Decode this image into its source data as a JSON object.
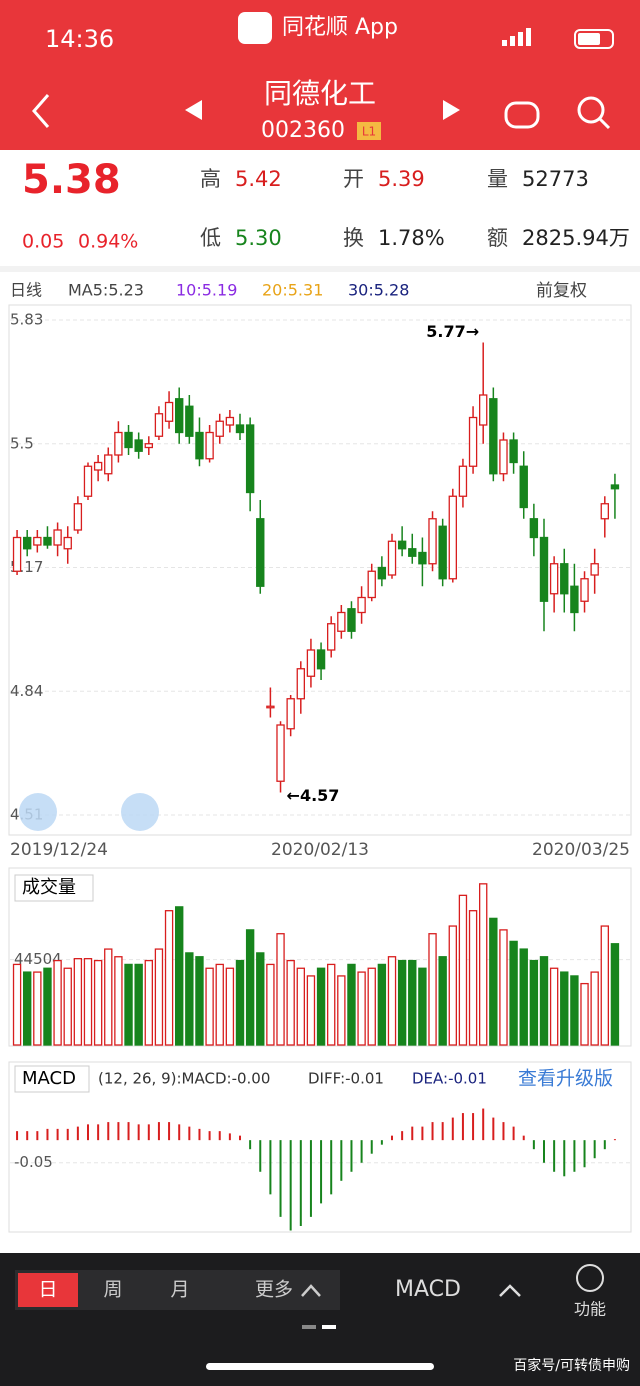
{
  "status": {
    "time": "14:36",
    "app": "同花顺 App"
  },
  "header": {
    "name": "同德化工",
    "code": "002360",
    "level": "L1"
  },
  "quote": {
    "price": "5.38",
    "change": "0.05",
    "pct": "0.94%",
    "items": [
      {
        "label": "高",
        "value": "5.42"
      },
      {
        "label": "开",
        "value": "5.39"
      },
      {
        "label": "量",
        "value": "52773"
      },
      {
        "label": "低",
        "value": "5.30"
      },
      {
        "label": "换",
        "value": "1.78%"
      },
      {
        "label": "额",
        "value": "2825.94万"
      }
    ]
  },
  "price": {
    "type": "candlestick",
    "period": "日线",
    "ma": [
      "MA5:5.23",
      "10:5.19",
      "20:5.31",
      "30:5.28"
    ],
    "adjust": "前复权",
    "ylim": [
      4.51,
      5.83
    ],
    "yticks": [
      5.83,
      5.5,
      {
        "value": 5.17,
        "label": "5.17"
      },
      4.84,
      4.51
    ],
    "dates": [
      "2019/12/24",
      "2020/02/13",
      "2020/03/25"
    ],
    "annotations": [
      "5.77→",
      "←4.57"
    ],
    "candles": [
      [
        5.16,
        5.27,
        5.15,
        5.25
      ],
      [
        5.25,
        5.27,
        5.2,
        5.22
      ],
      [
        5.23,
        5.27,
        5.21,
        5.25
      ],
      [
        5.25,
        5.28,
        5.22,
        5.23
      ],
      [
        5.23,
        5.29,
        5.2,
        5.27
      ],
      [
        5.22,
        5.28,
        5.18,
        5.25
      ],
      [
        5.27,
        5.36,
        5.26,
        5.34
      ],
      [
        5.36,
        5.45,
        5.35,
        5.44
      ],
      [
        5.43,
        5.47,
        5.4,
        5.45
      ],
      [
        5.42,
        5.49,
        5.4,
        5.47
      ],
      [
        5.47,
        5.56,
        5.45,
        5.53
      ],
      [
        5.53,
        5.55,
        5.47,
        5.49
      ],
      [
        5.51,
        5.53,
        5.46,
        5.48
      ],
      [
        5.49,
        5.52,
        5.47,
        5.5
      ],
      [
        5.52,
        5.6,
        5.51,
        5.58
      ],
      [
        5.56,
        5.64,
        5.54,
        5.61
      ],
      [
        5.62,
        5.65,
        5.5,
        5.53
      ],
      [
        5.6,
        5.63,
        5.5,
        5.52
      ],
      [
        5.53,
        5.57,
        5.44,
        5.46
      ],
      [
        5.46,
        5.55,
        5.45,
        5.53
      ],
      [
        5.52,
        5.58,
        5.5,
        5.56
      ],
      [
        5.55,
        5.59,
        5.53,
        5.57
      ],
      [
        5.55,
        5.58,
        5.51,
        5.53
      ],
      [
        5.55,
        5.57,
        5.32,
        5.37
      ],
      [
        5.3,
        5.35,
        5.1,
        5.12
      ],
      [
        4.8,
        4.85,
        4.77,
        4.8
      ],
      [
        4.6,
        4.76,
        4.57,
        4.75
      ],
      [
        4.74,
        4.83,
        4.72,
        4.82
      ],
      [
        4.82,
        4.92,
        4.78,
        4.9
      ],
      [
        4.88,
        4.98,
        4.85,
        4.95
      ],
      [
        4.95,
        4.97,
        4.87,
        4.9
      ],
      [
        4.95,
        5.04,
        4.93,
        5.02
      ],
      [
        5.0,
        5.07,
        4.98,
        5.05
      ],
      [
        5.06,
        5.08,
        4.98,
        5.0
      ],
      [
        5.05,
        5.12,
        5.02,
        5.09
      ],
      [
        5.09,
        5.18,
        5.08,
        5.16
      ],
      [
        5.17,
        5.2,
        5.12,
        5.14
      ],
      [
        5.15,
        5.26,
        5.14,
        5.24
      ],
      [
        5.24,
        5.28,
        5.2,
        5.22
      ],
      [
        5.22,
        5.26,
        5.18,
        5.2
      ],
      [
        5.21,
        5.25,
        5.12,
        5.18
      ],
      [
        5.18,
        5.32,
        5.16,
        5.3
      ],
      [
        5.28,
        5.3,
        5.12,
        5.14
      ],
      [
        5.14,
        5.38,
        5.13,
        5.36
      ],
      [
        5.36,
        5.46,
        5.33,
        5.44
      ],
      [
        5.44,
        5.6,
        5.42,
        5.57
      ],
      [
        5.55,
        5.77,
        5.5,
        5.63
      ],
      [
        5.62,
        5.65,
        5.4,
        5.42
      ],
      [
        5.42,
        5.53,
        5.4,
        5.51
      ],
      [
        5.51,
        5.53,
        5.42,
        5.45
      ],
      [
        5.44,
        5.48,
        5.3,
        5.33
      ],
      [
        5.3,
        5.34,
        5.2,
        5.25
      ],
      [
        5.25,
        5.3,
        5.0,
        5.08
      ],
      [
        5.1,
        5.2,
        5.05,
        5.18
      ],
      [
        5.18,
        5.22,
        5.05,
        5.1
      ],
      [
        5.12,
        5.18,
        5.0,
        5.05
      ],
      [
        5.08,
        5.16,
        5.05,
        5.14
      ],
      [
        5.15,
        5.22,
        5.1,
        5.18
      ],
      [
        5.3,
        5.36,
        5.25,
        5.34
      ],
      [
        5.39,
        5.42,
        5.3,
        5.38
      ]
    ]
  },
  "volume": {
    "type": "bar",
    "title": "成交量",
    "ylim": [
      0,
      86000
    ],
    "yticks": [
      44504
    ],
    "values": [
      42000,
      38000,
      38000,
      40000,
      44000,
      40000,
      45000,
      45000,
      44000,
      50000,
      46000,
      42000,
      42000,
      44000,
      50000,
      70000,
      72000,
      48000,
      46000,
      40000,
      42000,
      40000,
      44000,
      60000,
      48000,
      42000,
      58000,
      44000,
      40000,
      36000,
      40000,
      42000,
      36000,
      42000,
      38000,
      40000,
      42000,
      46000,
      44000,
      44000,
      40000,
      58000,
      46000,
      62000,
      78000,
      70000,
      84000,
      66000,
      60000,
      54000,
      50000,
      44000,
      46000,
      40000,
      38000,
      36000,
      32000,
      38000,
      62000,
      52773
    ]
  },
  "macd": {
    "type": "bar",
    "title": "MACD",
    "params": "(12, 26, 9):MACD:-0.00",
    "diff": "DIFF:-0.01",
    "dea": "DEA:-0.01",
    "upgrade": "查看升级版",
    "ylim": [
      -0.21,
      0.1
    ],
    "yticks": [
      -0.05
    ],
    "values": [
      0.02,
      0.02,
      0.02,
      0.025,
      0.025,
      0.025,
      0.03,
      0.035,
      0.035,
      0.04,
      0.04,
      0.04,
      0.035,
      0.035,
      0.04,
      0.04,
      0.035,
      0.03,
      0.025,
      0.02,
      0.02,
      0.015,
      0.01,
      -0.02,
      -0.07,
      -0.12,
      -0.17,
      -0.2,
      -0.19,
      -0.17,
      -0.14,
      -0.12,
      -0.09,
      -0.07,
      -0.05,
      -0.03,
      -0.01,
      0.01,
      0.02,
      0.03,
      0.03,
      0.04,
      0.04,
      0.05,
      0.06,
      0.06,
      0.07,
      0.05,
      0.04,
      0.03,
      0.01,
      -0.02,
      -0.05,
      -0.07,
      -0.08,
      -0.07,
      -0.06,
      -0.04,
      -0.02,
      0
    ]
  },
  "tabs": [
    "日",
    "周",
    "月",
    "更多"
  ],
  "indicator": "MACD",
  "menu": "功能",
  "watermark": "百家号/可转债申购"
}
